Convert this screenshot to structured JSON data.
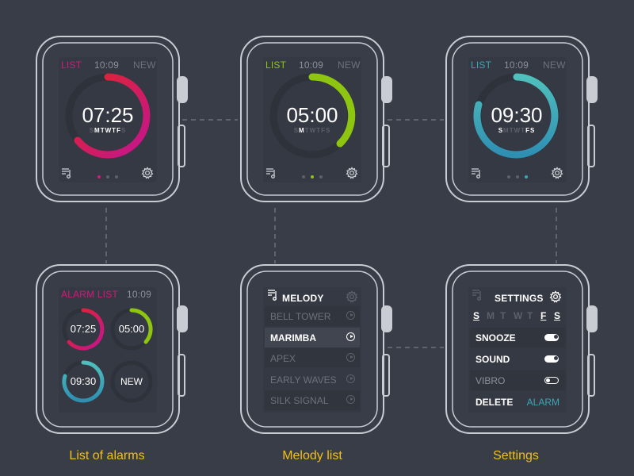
{
  "screen1": {
    "list_label": "LIST",
    "time": "10:09",
    "new_label": "NEW",
    "alarm_time": "07:25",
    "days": [
      {
        "d": "S",
        "on": false
      },
      {
        "d": "M",
        "on": true
      },
      {
        "d": "T",
        "on": true
      },
      {
        "d": "W",
        "on": true
      },
      {
        "d": "T",
        "on": true
      },
      {
        "d": "F",
        "on": true
      },
      {
        "d": "S",
        "on": false
      }
    ],
    "accent": "#d5177e"
  },
  "screen2": {
    "list_label": "LIST",
    "time": "10:09",
    "new_label": "NEW",
    "alarm_time": "05:00",
    "days": [
      {
        "d": "S",
        "on": false
      },
      {
        "d": "M",
        "on": true
      },
      {
        "d": "T",
        "on": false
      },
      {
        "d": "W",
        "on": false
      },
      {
        "d": "T",
        "on": false
      },
      {
        "d": "F",
        "on": false
      },
      {
        "d": "S",
        "on": false
      }
    ],
    "accent": "#8dc511"
  },
  "screen3": {
    "list_label": "LIST",
    "time": "10:09",
    "new_label": "NEW",
    "alarm_time": "09:30",
    "days": [
      {
        "d": "S",
        "on": true
      },
      {
        "d": "M",
        "on": false
      },
      {
        "d": "T",
        "on": false
      },
      {
        "d": "W",
        "on": false
      },
      {
        "d": "T",
        "on": false
      },
      {
        "d": "F",
        "on": true
      },
      {
        "d": "S",
        "on": true
      }
    ],
    "accent": "#3ba7b4"
  },
  "alarm_list": {
    "title": "ALARM LIST",
    "time": "10:09",
    "alarms": [
      {
        "time": "07:25"
      },
      {
        "time": "05:00"
      },
      {
        "time": "09:30"
      }
    ],
    "new_label": "NEW"
  },
  "melody": {
    "header": "MELODY",
    "items": [
      {
        "label": "BELL TOWER",
        "selected": false
      },
      {
        "label": "MARIMBA",
        "selected": true
      },
      {
        "label": "APEX",
        "selected": false
      },
      {
        "label": "EARLY WAVES",
        "selected": false
      },
      {
        "label": "SILK SIGNAL",
        "selected": false
      }
    ]
  },
  "settings": {
    "header": "SETTINGS",
    "days": [
      {
        "d": "S",
        "on": true
      },
      {
        "d": "M",
        "on": false
      },
      {
        "d": "T",
        "on": false
      },
      {
        "d": "W",
        "on": false
      },
      {
        "d": "T",
        "on": false
      },
      {
        "d": "F",
        "on": true
      },
      {
        "d": "S",
        "on": true
      }
    ],
    "snooze": {
      "label": "SNOOZE",
      "enabled": true
    },
    "sound": {
      "label": "SOUND",
      "enabled": true
    },
    "vibro": {
      "label": "VIBRO",
      "enabled": false
    },
    "delete_label": "DELETE",
    "alarm_label": "ALARM"
  },
  "captions": {
    "alarms": "List of alarms",
    "melody": "Melody list",
    "settings": "Settings"
  },
  "colors": {
    "background": "#393d48",
    "watch_outline": "#c9ccd3",
    "caption": "#f3c013",
    "magenta": "#d5177e",
    "green": "#8dc511",
    "teal": "#3ba7b4"
  }
}
